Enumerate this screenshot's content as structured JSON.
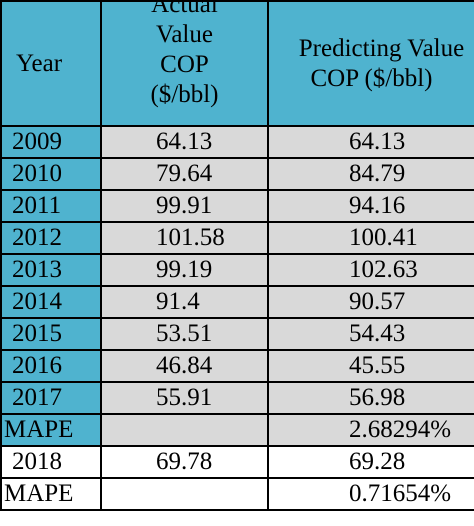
{
  "chart_data": {
    "type": "table",
    "columns": [
      "Year",
      "Actual Value COP ($/bbl)",
      "Predicting Value COP ($/bbl)"
    ],
    "header_lines": {
      "year": [
        "Year"
      ],
      "actual": [
        "Actual",
        "Value",
        "COP",
        "($/bbl)"
      ],
      "predicting": [
        "Predicting Value",
        "COP ($/bbl)"
      ]
    },
    "rows": [
      {
        "year": "2009",
        "actual": "64.13",
        "predicting": "64.13"
      },
      {
        "year": "2010",
        "actual": "79.64",
        "predicting": "84.79"
      },
      {
        "year": "2011",
        "actual": "99.91",
        "predicting": "94.16"
      },
      {
        "year": "2012",
        "actual": "101.58",
        "predicting": "100.41"
      },
      {
        "year": "2013",
        "actual": "99.19",
        "predicting": "102.63"
      },
      {
        "year": "2014",
        "actual": "91.4",
        "predicting": "90.57"
      },
      {
        "year": "2015",
        "actual": "53.51",
        "predicting": "54.43"
      },
      {
        "year": "2016",
        "actual": "46.84",
        "predicting": "45.55"
      },
      {
        "year": "2017",
        "actual": "55.91",
        "predicting": "56.98"
      },
      {
        "year": "MAPE",
        "actual": "",
        "predicting": "2.68294%",
        "kind": "mape"
      },
      {
        "year": "2018",
        "actual": "69.78",
        "predicting": "69.28",
        "kind": "white"
      },
      {
        "year": "MAPE",
        "actual": "",
        "predicting": "0.71654%",
        "kind": "mape-white"
      }
    ],
    "colors": {
      "header_fill": "#4fb3cf",
      "body_fill": "#d9d9d9",
      "plain_fill": "#ffffff"
    }
  }
}
